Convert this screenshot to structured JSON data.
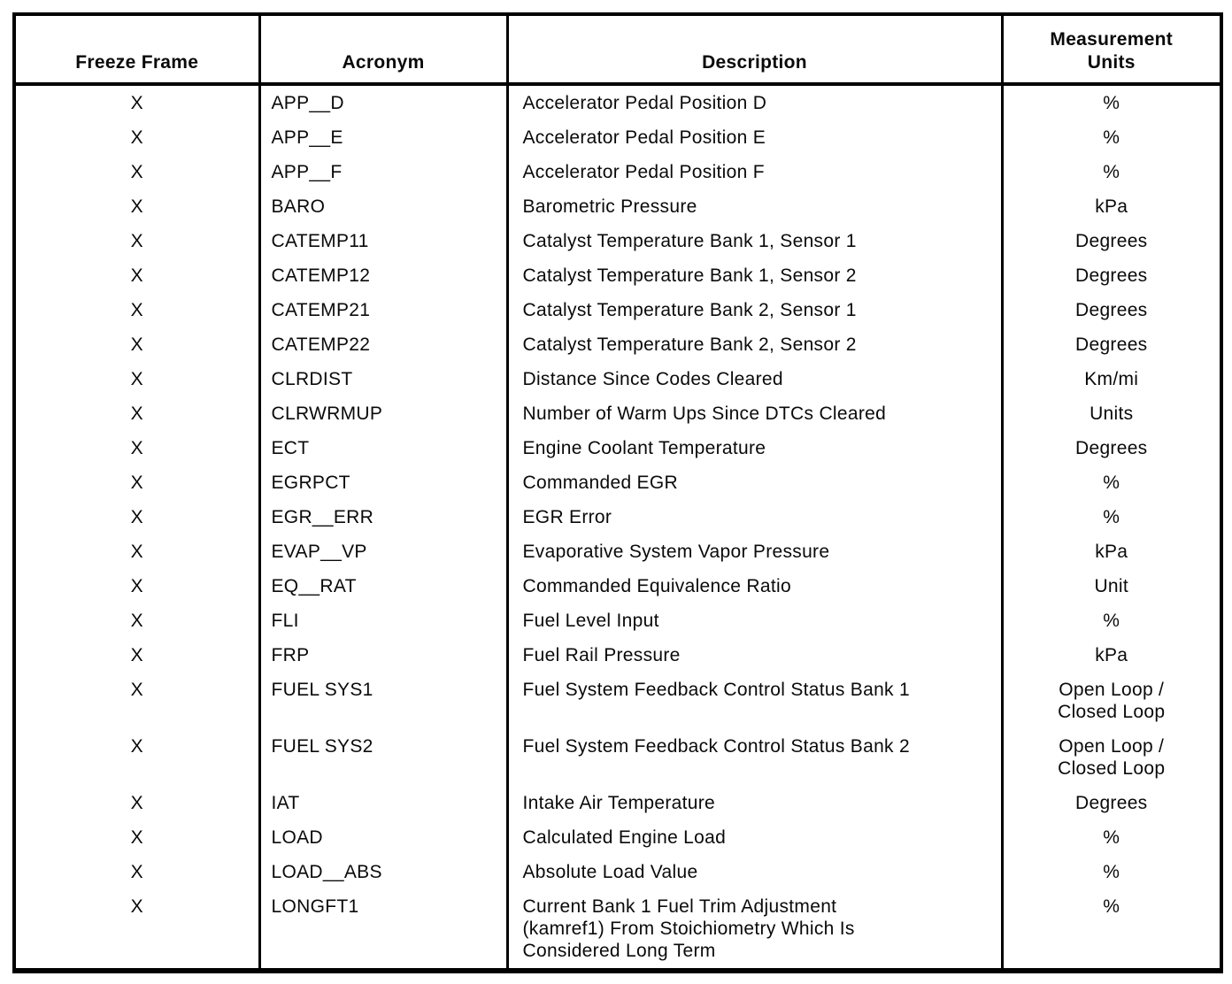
{
  "table": {
    "headers": {
      "freeze_frame": "Freeze Frame",
      "acronym": "Acronym",
      "description": "Description",
      "units": "Measurement\nUnits"
    },
    "rows": [
      {
        "freeze_frame": "X",
        "acronym": "APP__D",
        "description": "Accelerator Pedal Position D",
        "units": "%"
      },
      {
        "freeze_frame": "X",
        "acronym": "APP__E",
        "description": "Accelerator Pedal Position E",
        "units": "%"
      },
      {
        "freeze_frame": "X",
        "acronym": "APP__F",
        "description": "Accelerator Pedal Position F",
        "units": "%"
      },
      {
        "freeze_frame": "X",
        "acronym": "BARO",
        "description": "Barometric Pressure",
        "units": "kPa"
      },
      {
        "freeze_frame": "X",
        "acronym": "CATEMP11",
        "description": "Catalyst Temperature Bank 1, Sensor 1",
        "units": "Degrees"
      },
      {
        "freeze_frame": "X",
        "acronym": "CATEMP12",
        "description": "Catalyst Temperature Bank 1, Sensor 2",
        "units": "Degrees"
      },
      {
        "freeze_frame": "X",
        "acronym": "CATEMP21",
        "description": "Catalyst Temperature Bank 2, Sensor 1",
        "units": "Degrees"
      },
      {
        "freeze_frame": "X",
        "acronym": "CATEMP22",
        "description": "Catalyst Temperature Bank 2, Sensor 2",
        "units": "Degrees"
      },
      {
        "freeze_frame": "X",
        "acronym": "CLRDIST",
        "description": "Distance Since Codes Cleared",
        "units": "Km/mi"
      },
      {
        "freeze_frame": "X",
        "acronym": "CLRWRMUP",
        "description": "Number of Warm Ups Since DTCs Cleared",
        "units": "Units"
      },
      {
        "freeze_frame": "X",
        "acronym": "ECT",
        "description": "Engine Coolant Temperature",
        "units": "Degrees"
      },
      {
        "freeze_frame": "X",
        "acronym": "EGRPCT",
        "description": "Commanded EGR",
        "units": "%"
      },
      {
        "freeze_frame": "X",
        "acronym": "EGR__ERR",
        "description": "EGR Error",
        "units": "%"
      },
      {
        "freeze_frame": "X",
        "acronym": "EVAP__VP",
        "description": "Evaporative System Vapor Pressure",
        "units": "kPa"
      },
      {
        "freeze_frame": "X",
        "acronym": "EQ__RAT",
        "description": "Commanded Equivalence Ratio",
        "units": "Unit"
      },
      {
        "freeze_frame": "X",
        "acronym": "FLI",
        "description": "Fuel Level Input",
        "units": "%"
      },
      {
        "freeze_frame": "X",
        "acronym": "FRP",
        "description": "Fuel Rail Pressure",
        "units": "kPa"
      },
      {
        "freeze_frame": "X",
        "acronym": "FUEL SYS1",
        "description": "Fuel System Feedback Control Status Bank 1",
        "units": "Open Loop /\nClosed Loop"
      },
      {
        "freeze_frame": "X",
        "acronym": "FUEL SYS2",
        "description": "Fuel System Feedback Control Status Bank 2",
        "units": "Open Loop /\nClosed Loop"
      },
      {
        "freeze_frame": "X",
        "acronym": "IAT",
        "description": "Intake Air Temperature",
        "units": "Degrees"
      },
      {
        "freeze_frame": "X",
        "acronym": "LOAD",
        "description": "Calculated Engine Load",
        "units": "%"
      },
      {
        "freeze_frame": "X",
        "acronym": "LOAD__ABS",
        "description": "Absolute Load Value",
        "units": "%"
      },
      {
        "freeze_frame": "X",
        "acronym": "LONGFT1",
        "description": "Current Bank 1 Fuel Trim Adjustment\n(kamref1) From Stoichiometry Which Is\nConsidered Long Term",
        "units": "%"
      }
    ]
  }
}
